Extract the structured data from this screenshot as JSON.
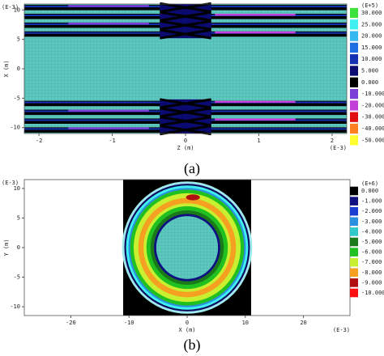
{
  "chart_data": [
    {
      "type": "contour",
      "x_label": "Z (m)",
      "y_label": "X (m)",
      "x_scale_label": "(E-3)",
      "y_scale_label": "(E-3)",
      "colorbar_title": "(E+5)",
      "caption": "(a)",
      "xlim": [
        -2.2,
        2.2
      ],
      "ylim": [
        -11,
        11
      ],
      "xticks": [
        -2,
        -1,
        0,
        1,
        2
      ],
      "yticks": [
        10,
        5,
        0,
        -5,
        -10
      ],
      "levels": [
        {
          "value": 30,
          "label": "30.000",
          "color": "#3de03d"
        },
        {
          "value": 25,
          "label": "25.000",
          "color": "#3ff0f0"
        },
        {
          "value": 20,
          "label": "20.000",
          "color": "#38b8f0"
        },
        {
          "value": 15,
          "label": "15.000",
          "color": "#1f6fe0"
        },
        {
          "value": 10,
          "label": "10.000",
          "color": "#1530b0"
        },
        {
          "value": 5,
          "label": "5.000",
          "color": "#0a0a70"
        },
        {
          "value": 0,
          "label": "0.000",
          "color": "#000000"
        },
        {
          "value": -10,
          "label": "-10.000",
          "color": "#7b3fd8"
        },
        {
          "value": -20,
          "label": "-20.000",
          "color": "#c23fd8"
        },
        {
          "value": -30,
          "label": "-30.000",
          "color": "#e01010"
        },
        {
          "value": -40,
          "label": "-40.000",
          "color": "#ff8020"
        },
        {
          "value": -50,
          "label": "-50.000",
          "color": "#ffff30"
        }
      ]
    },
    {
      "type": "contour",
      "x_label": "X (m)",
      "y_label": "Y (m)",
      "x_scale_label": "(E-3)",
      "y_scale_label": "(E-3)",
      "colorbar_title": "(E+6)",
      "caption": "(b)",
      "xlim": [
        -28,
        28
      ],
      "ylim": [
        -11.5,
        11.5
      ],
      "xticks": [
        -20,
        -10,
        0,
        10,
        20
      ],
      "yticks": [
        10,
        5,
        0,
        -5,
        -10
      ],
      "levels": [
        {
          "value": 0,
          "label": "0.000",
          "color": "#000000"
        },
        {
          "value": -1,
          "label": "-1.000",
          "color": "#101080"
        },
        {
          "value": -2,
          "label": "-2.000",
          "color": "#1a3fd0"
        },
        {
          "value": -3,
          "label": "-3.000",
          "color": "#2a90e0"
        },
        {
          "value": -4,
          "label": "-4.000",
          "color": "#30c8c8"
        },
        {
          "value": -5,
          "label": "-5.000",
          "color": "#1a7a1a"
        },
        {
          "value": -6,
          "label": "-6.000",
          "color": "#20c020"
        },
        {
          "value": -7,
          "label": "-7.000",
          "color": "#c8f030"
        },
        {
          "value": -8,
          "label": "-8.000",
          "color": "#f5a020"
        },
        {
          "value": -9,
          "label": "-9.000",
          "color": "#b01010"
        },
        {
          "value": -10,
          "label": "-10.000",
          "color": "#ff1010"
        }
      ]
    }
  ]
}
